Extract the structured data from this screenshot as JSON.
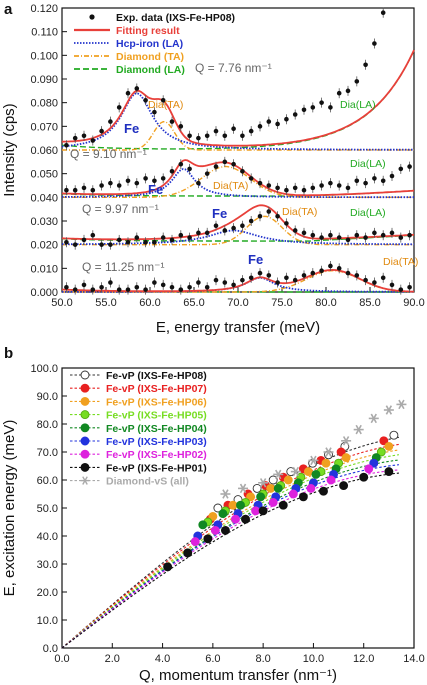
{
  "chart_data": [
    {
      "type": "scatter",
      "panel_label": "a",
      "xlabel": "E, energy transfer (meV)",
      "ylabel": "Intensity (cps)",
      "xlim": [
        50,
        90
      ],
      "ylim": [
        0,
        0.12
      ],
      "x_ticks": [
        "50.0",
        "55.0",
        "60.0",
        "65.0",
        "70.0",
        "75.0",
        "80.0",
        "85.0",
        "90.0"
      ],
      "y_ticks": [
        "0.000",
        "0.010",
        "0.020",
        "0.030",
        "0.040",
        "0.050",
        "0.060",
        "0.070",
        "0.080",
        "0.090",
        "0.100",
        "0.110",
        "0.120"
      ],
      "legend": [
        {
          "label": "Exp. data (IXS-Fe-HP08)",
          "color": "#111111",
          "style": "dot"
        },
        {
          "label": "Fitting result",
          "color": "#e8403a",
          "style": "solid"
        },
        {
          "label": "Hcp-iron (LA)",
          "color": "#2233cc",
          "style": "dotted"
        },
        {
          "label": "Diamond (TA)",
          "color": "#f0a020",
          "style": "dashdot"
        },
        {
          "label": "Diamond (LA)",
          "color": "#22aa22",
          "style": "dashed"
        }
      ],
      "spectra": [
        {
          "q": "Q = 7.76 nm⁻¹",
          "fe": "Fe",
          "dia_ta": "Dia(TA)",
          "dia_la": "Dia(LA)",
          "baseline": 0.06,
          "x": [
            50.5,
            51.5,
            52.5,
            53.5,
            54.5,
            55.5,
            56.5,
            57.5,
            58.5,
            59.5,
            60.5,
            61.5,
            62.5,
            63.5,
            64.5,
            65.5,
            66.5,
            67.5,
            68.5,
            69.5,
            70.5,
            71.5,
            72.5,
            73.5,
            74.5,
            75.5,
            76.5,
            77.5,
            78.5,
            79.5,
            80.5,
            81.5,
            82.5,
            83.5,
            84.5,
            85.5,
            86.5
          ],
          "y": [
            0.062,
            0.065,
            0.066,
            0.064,
            0.068,
            0.072,
            0.078,
            0.084,
            0.086,
            0.081,
            0.076,
            0.081,
            0.072,
            0.07,
            0.066,
            0.065,
            0.066,
            0.068,
            0.066,
            0.069,
            0.066,
            0.068,
            0.07,
            0.072,
            0.071,
            0.073,
            0.075,
            0.077,
            0.078,
            0.08,
            0.078,
            0.084,
            0.085,
            0.089,
            0.096,
            0.105,
            0.118
          ]
        },
        {
          "q": "Q = 9.10 nm⁻¹",
          "fe": "Fe",
          "dia_ta": "Dia(TA)",
          "dia_la": "Dia(LA)",
          "baseline": 0.04,
          "x": [
            50.5,
            51.5,
            52.5,
            53.5,
            54.5,
            55.5,
            56.5,
            57.5,
            58.5,
            59.5,
            60.5,
            61.5,
            62.5,
            63.5,
            64.5,
            65.5,
            66.5,
            67.5,
            68.5,
            69.5,
            70.5,
            71.5,
            72.5,
            73.5,
            74.5,
            75.5,
            76.5,
            77.5,
            78.5,
            79.5,
            80.5,
            81.5,
            82.5,
            83.5,
            84.5,
            85.5,
            86.5,
            87.5,
            88.5,
            89.5
          ],
          "y": [
            0.043,
            0.043,
            0.044,
            0.043,
            0.045,
            0.046,
            0.045,
            0.047,
            0.046,
            0.048,
            0.047,
            0.048,
            0.051,
            0.054,
            0.052,
            0.046,
            0.05,
            0.053,
            0.055,
            0.054,
            0.051,
            0.048,
            0.046,
            0.045,
            0.044,
            0.043,
            0.044,
            0.043,
            0.044,
            0.045,
            0.046,
            0.045,
            0.044,
            0.047,
            0.046,
            0.048,
            0.047,
            0.049,
            0.052,
            0.053
          ]
        },
        {
          "q": "Q = 9.97 nm⁻¹",
          "fe": "Fe",
          "dia_ta": "Dia(TA)",
          "dia_la": "Dia(LA)",
          "baseline": 0.02,
          "x": [
            50.5,
            51.5,
            52.5,
            53.5,
            54.5,
            55.5,
            56.5,
            57.5,
            58.5,
            59.5,
            60.5,
            61.5,
            62.5,
            63.5,
            64.5,
            65.5,
            66.5,
            67.5,
            68.5,
            69.5,
            70.5,
            71.5,
            72.5,
            73.5,
            74.5,
            75.5,
            76.5,
            77.5,
            78.5,
            79.5,
            80.5,
            81.5,
            82.5,
            83.5,
            84.5,
            85.5,
            86.5,
            87.5,
            88.5,
            89.5
          ],
          "y": [
            0.021,
            0.02,
            0.022,
            0.024,
            0.02,
            0.02,
            0.022,
            0.021,
            0.023,
            0.021,
            0.021,
            0.023,
            0.022,
            0.024,
            0.023,
            0.025,
            0.025,
            0.028,
            0.026,
            0.027,
            0.028,
            0.03,
            0.032,
            0.034,
            0.032,
            0.029,
            0.026,
            0.025,
            0.024,
            0.023,
            0.024,
            0.023,
            0.022,
            0.024,
            0.023,
            0.025,
            0.024,
            0.025,
            0.023,
            0.024
          ]
        },
        {
          "q": "Q = 11.25 nm⁻¹",
          "fe": "Fe",
          "dia_ta": "Dia(TA)",
          "dia_la": "",
          "baseline": 0.0,
          "x": [
            50.5,
            51.5,
            52.5,
            53.5,
            54.5,
            55.5,
            56.5,
            57.5,
            58.5,
            59.5,
            60.5,
            61.5,
            62.5,
            63.5,
            64.5,
            65.5,
            66.5,
            67.5,
            68.5,
            69.5,
            70.5,
            71.5,
            72.5,
            73.5,
            74.5,
            75.5,
            76.5,
            77.5,
            78.5,
            79.5,
            80.5,
            81.5,
            82.5,
            83.5,
            84.5,
            85.5,
            86.5,
            87.5,
            88.5,
            89.5
          ],
          "y": [
            0.002,
            0.001,
            0.003,
            0.001,
            0.002,
            0.004,
            0.001,
            0.001,
            0.002,
            0.001,
            0.004,
            0.003,
            0.002,
            0.001,
            0.002,
            0.004,
            0.002,
            0.005,
            0.004,
            0.003,
            0.005,
            0.006,
            0.008,
            0.007,
            0.004,
            0.006,
            0.005,
            0.007,
            0.008,
            0.009,
            0.011,
            0.01,
            0.008,
            0.007,
            0.005,
            0.004,
            0.006,
            0.003,
            0.001,
            0.002
          ]
        }
      ]
    },
    {
      "type": "scatter",
      "panel_label": "b",
      "xlabel": "Q, momentum transfer (nm⁻¹)",
      "ylabel": "E, excitation energy (meV)",
      "xlim": [
        0,
        14
      ],
      "ylim": [
        0,
        100
      ],
      "x_ticks": [
        "0.0",
        "2.0",
        "4.0",
        "6.0",
        "8.0",
        "10.0",
        "12.0",
        "14.0"
      ],
      "y_ticks": [
        "0.0",
        "10.0",
        "20.0",
        "30.0",
        "40.0",
        "50.0",
        "60.0",
        "70.0",
        "80.0",
        "90.0",
        "100.0"
      ],
      "series": [
        {
          "name": "Fe-vP (IXS-Fe-HP08)",
          "color": "#ffffff",
          "edge": "#333333",
          "marker": "circle",
          "x": [
            6.2,
            7.0,
            7.76,
            8.4,
            9.1,
            9.97,
            10.6,
            11.25,
            13.2
          ],
          "y": [
            50,
            53,
            57,
            60,
            63,
            66,
            69,
            72,
            76
          ]
        },
        {
          "name": "Fe-vP (IXS-Fe-HP07)",
          "color": "#e82020",
          "edge": "#e82020",
          "marker": "circle",
          "x": [
            5.9,
            6.6,
            7.4,
            8.1,
            8.8,
            9.6,
            10.3,
            11.1,
            12.8
          ],
          "y": [
            46,
            51,
            55,
            58,
            61,
            64,
            67,
            70,
            74
          ]
        },
        {
          "name": "Fe-vP (IXS-Fe-HP06)",
          "color": "#f0a020",
          "edge": "#f0a020",
          "marker": "circle",
          "x": [
            6.0,
            6.8,
            7.5,
            8.3,
            9.0,
            9.8,
            10.5,
            11.3,
            13.0
          ],
          "y": [
            47,
            51,
            54,
            57,
            60,
            63,
            66,
            68,
            72
          ]
        },
        {
          "name": "Fe-vP (IXS-Fe-HP05)",
          "color": "#77dd22",
          "edge": "#55aa11",
          "marker": "circle",
          "x": [
            5.8,
            6.5,
            7.3,
            8.0,
            8.7,
            9.5,
            10.3,
            11.0,
            12.7
          ],
          "y": [
            45,
            49,
            52,
            55,
            58,
            61,
            63,
            66,
            70
          ]
        },
        {
          "name": "Fe-vP (IXS-Fe-HP04)",
          "color": "#118822",
          "edge": "#118822",
          "marker": "circle",
          "x": [
            5.6,
            6.4,
            7.1,
            7.9,
            8.6,
            9.4,
            10.1,
            10.9,
            12.5
          ],
          "y": [
            44,
            48,
            51,
            54,
            57,
            59,
            62,
            64,
            68
          ]
        },
        {
          "name": "Fe-vP (IXS-Fe-HP03)",
          "color": "#2233dd",
          "edge": "#2233dd",
          "marker": "circle",
          "x": [
            5.4,
            6.2,
            7.0,
            7.8,
            8.5,
            9.3,
            10.0,
            10.8,
            12.4
          ],
          "y": [
            40,
            44,
            48,
            51,
            54,
            57,
            59,
            62,
            66
          ]
        },
        {
          "name": "Fe-vP (IXS-Fe-HP02)",
          "color": "#dd22dd",
          "edge": "#dd22dd",
          "marker": "circle",
          "x": [
            5.3,
            6.1,
            6.9,
            7.7,
            8.4,
            9.2,
            9.9,
            10.7,
            12.2
          ],
          "y": [
            38,
            42,
            46,
            49,
            52,
            55,
            57,
            60,
            64
          ]
        },
        {
          "name": "Fe-vP (IXS-Fe-HP01)",
          "color": "#111111",
          "edge": "#111111",
          "marker": "circle",
          "x": [
            4.2,
            5.0,
            5.8,
            6.5,
            7.3,
            8.0,
            8.8,
            9.6,
            10.4,
            11.2,
            12.0,
            13.0
          ],
          "y": [
            29,
            34,
            39,
            42,
            46,
            49,
            51,
            54,
            56,
            58,
            61,
            63
          ]
        },
        {
          "name": "Diamond-vS (all)",
          "color": "#aaaaaa",
          "edge": "#aaaaaa",
          "marker": "asterisk",
          "x": [
            6.5,
            7.2,
            8.0,
            8.6,
            9.3,
            10.0,
            10.6,
            11.3,
            11.8,
            12.4,
            13.0,
            13.5
          ],
          "y": [
            55,
            57,
            59,
            62,
            63,
            67,
            70,
            74,
            78,
            82,
            85,
            87
          ]
        }
      ]
    }
  ]
}
